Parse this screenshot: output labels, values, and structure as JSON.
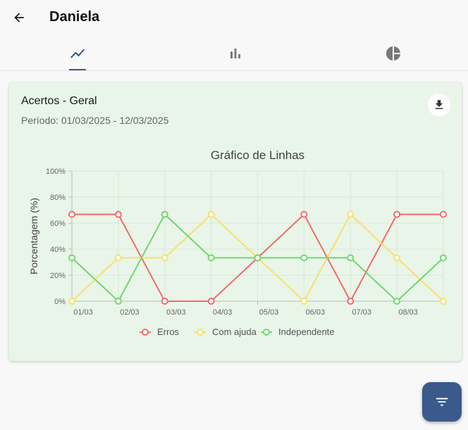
{
  "header": {
    "title": "Daniela",
    "back_icon": "arrow-back-icon"
  },
  "tabs": [
    {
      "icon": "line-chart-icon",
      "active": true
    },
    {
      "icon": "bar-chart-icon",
      "active": false
    },
    {
      "icon": "pie-chart-icon",
      "active": false
    }
  ],
  "card": {
    "title": "Acertos - Geral",
    "period": "Período: 01/03/2025 - 12/03/2025",
    "download_icon": "download-icon",
    "background": "#e9f5e9"
  },
  "chart_data": {
    "type": "line",
    "title": "Gráfico de Linhas",
    "ylabel": "Porcentagem (%)",
    "xlabel": "",
    "x": [
      "01/03",
      "02/03",
      "03/03",
      "04/03",
      "05/03",
      "06/03",
      "07/03",
      "08/03",
      ""
    ],
    "ylim": [
      0,
      100
    ],
    "yticks": [
      "0%",
      "20%",
      "40%",
      "60%",
      "80%",
      "100%"
    ],
    "grid": true,
    "legend": "bottom-center",
    "series": [
      {
        "name": "Erros",
        "color": "#f26b6b",
        "values": [
          66.7,
          66.7,
          0,
          0,
          33.3,
          66.7,
          0,
          66.7,
          66.7
        ]
      },
      {
        "name": "Com ajuda",
        "color": "#f7e16b",
        "values": [
          0,
          33.3,
          33.3,
          66.7,
          33.3,
          0,
          66.7,
          33.3,
          0
        ]
      },
      {
        "name": "Independente",
        "color": "#6fd86f",
        "values": [
          33.3,
          0,
          66.7,
          33.3,
          33.3,
          33.3,
          33.3,
          0,
          33.3
        ]
      }
    ]
  },
  "fab": {
    "icon": "filter-icon",
    "color": "#3a5a8c"
  }
}
